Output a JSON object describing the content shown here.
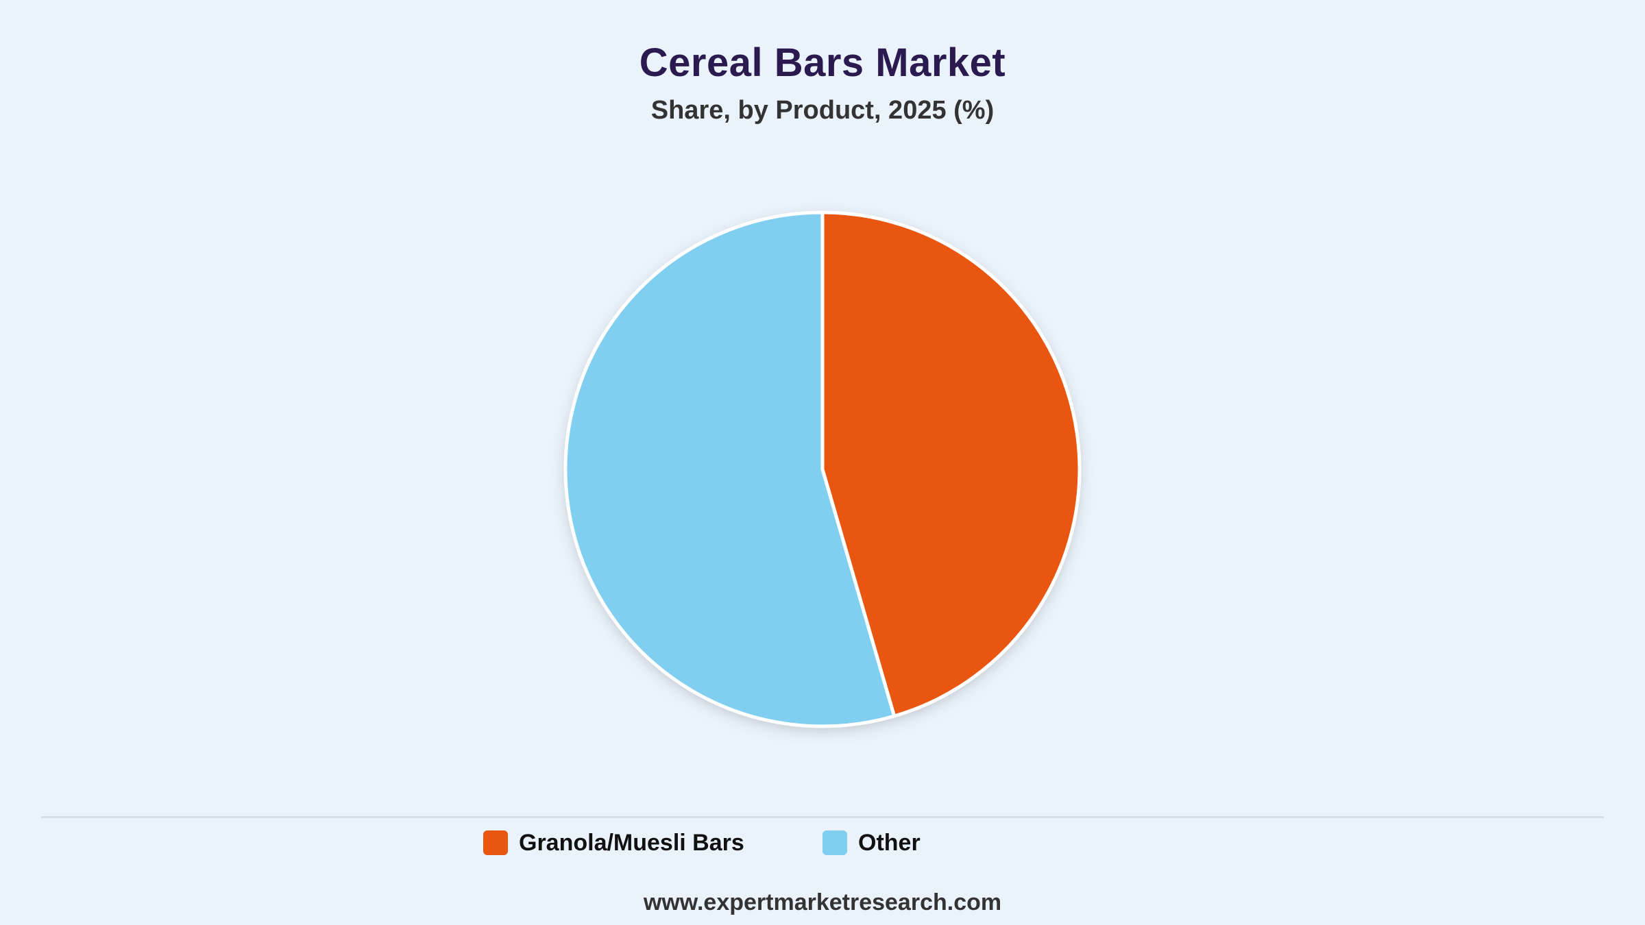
{
  "header": {
    "title": "Cereal Bars Market",
    "subtitle": "Share, by Product, 2025 (%)"
  },
  "footer": {
    "source": "www.expertmarketresearch.com"
  },
  "chart_data": {
    "type": "pie",
    "title": "Cereal Bars Market",
    "subtitle": "Share, by Product, 2025 (%)",
    "categories": [
      "Granola/Muesli Bars",
      "Other"
    ],
    "values": [
      45.5,
      54.5
    ],
    "colors": [
      "#e8560f",
      "#80cff1"
    ],
    "legend_position": "bottom",
    "start_angle": "12 o'clock, clockwise"
  }
}
